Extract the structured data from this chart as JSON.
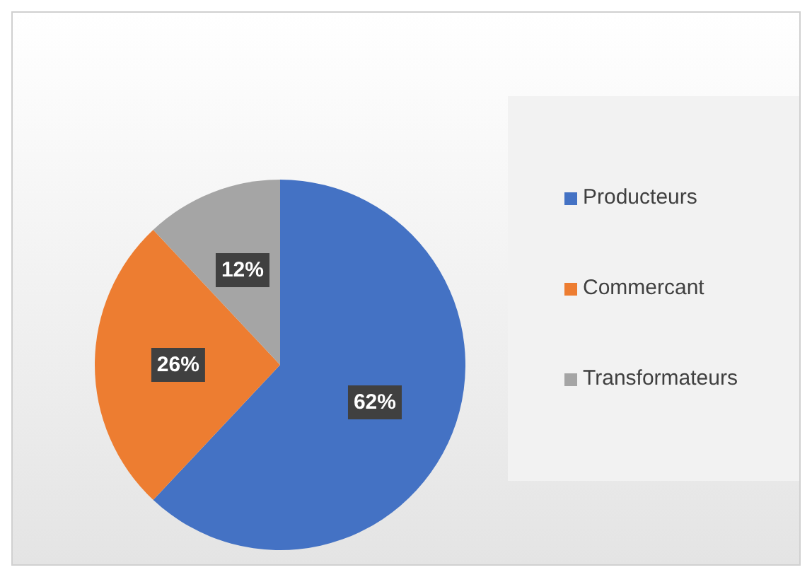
{
  "chart_data": {
    "type": "pie",
    "categories": [
      "Producteurs",
      "Commercant",
      "Transformateurs"
    ],
    "values": [
      62,
      26,
      12
    ],
    "value_labels": [
      "62%",
      "26%",
      "12%"
    ],
    "colors": [
      "#4472c4",
      "#ed7d31",
      "#a5a5a5"
    ],
    "legend": "right"
  }
}
